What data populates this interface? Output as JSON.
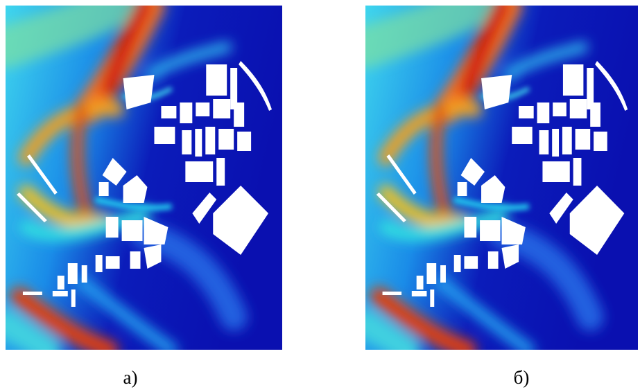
{
  "figure": {
    "panels": [
      {
        "label": "а)"
      },
      {
        "label": "б)"
      }
    ]
  }
}
